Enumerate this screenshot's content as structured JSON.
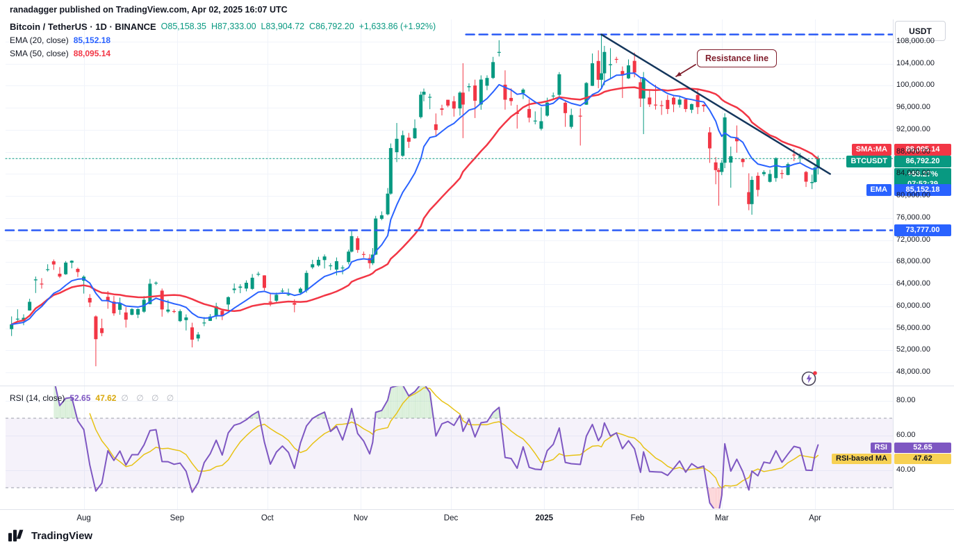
{
  "attribution": "ranadagger published on TradingView.com, Apr 02, 2025 16:07 UTC",
  "axis_button": "USDT",
  "legend": {
    "symbol": "Bitcoin / TetherUS · 1D · BINANCE",
    "ohlc": "O85,158.35  H87,333.00  L83,904.72  C86,792.20  +1,633.86 (+1.92%)",
    "ema_label": "EMA (20, close)",
    "ema_value": "85,152.18",
    "sma_label": "SMA (50, close)",
    "sma_value": "88,095.14"
  },
  "rsi_legend": {
    "label": "RSI (14, close)",
    "value": "52.65",
    "ma_value": "47.62",
    "hidden": "∅ ∅ ∅ ∅"
  },
  "price_labels": {
    "sma_tag": "SMA:MA",
    "sma_value": "88,095.14",
    "symbol_tag": "BTCUSDT",
    "symbol_value": "86,792.20",
    "countdown_pct": "+53.27%",
    "countdown_time": "07:52:39",
    "ema_tag": "EMA",
    "ema_value": "85,152.18",
    "support_value": "73,777.00"
  },
  "rsi_labels": {
    "rsi_tag": "RSI",
    "rsi_value": "52.65",
    "ma_tag": "RSI-based MA",
    "ma_value": "47.62"
  },
  "annotation": {
    "resistance": "Resistance line"
  },
  "footer": {
    "brand": "TradingView"
  },
  "colors": {
    "up": "#089981",
    "down": "#f23645",
    "ema": "#2962ff",
    "sma": "#f23645",
    "dashed": "#2a5af5",
    "trend": "#14365c",
    "annotation": "#7f1d2b",
    "rsi": "#7e57c2",
    "rsi_ma": "#e7c214",
    "grid": "#f0f3fa",
    "separator": "#e0e3eb",
    "axis_text": "#131722"
  },
  "chart_data": {
    "type": "candlestick",
    "title": "Bitcoin / TetherUS · 1D · BINANCE",
    "symbol": "BTCUSDT",
    "exchange": "BINANCE",
    "interval": "1D",
    "ohlc_current": {
      "open": 85158.35,
      "high": 87333.0,
      "low": 83904.72,
      "close": 86792.2,
      "change": 1633.86,
      "change_pct": 1.92
    },
    "indicators": {
      "ema_20": 85152.18,
      "sma_50": 88095.14,
      "rsi_14": 52.65,
      "rsi_based_ma": 47.62
    },
    "levels": {
      "resistance_dashed": 109300,
      "resistance_dashed_start": "2024-12-06",
      "support_dashed": 73777,
      "current_price": 86792.2
    },
    "trendline": {
      "label": "Resistance line",
      "start": {
        "date": "2025-01-20",
        "price": 109300
      },
      "end": {
        "date": "2025-04-06",
        "price": 84000
      }
    },
    "y_axis": {
      "min": 46740,
      "max": 112000,
      "ticks": [
        108000,
        104000,
        100000,
        96000,
        92000,
        88000,
        84000,
        80000,
        76000,
        72000,
        68000,
        64000,
        60000,
        56000,
        52000,
        48000
      ]
    },
    "x_axis": [
      {
        "label": "Aug",
        "date": "2024-08-01"
      },
      {
        "label": "Sep",
        "date": "2024-09-01"
      },
      {
        "label": "Oct",
        "date": "2024-10-01"
      },
      {
        "label": "Nov",
        "date": "2024-11-01"
      },
      {
        "label": "Dec",
        "date": "2024-12-01"
      },
      {
        "label": "2025",
        "date": "2025-01-01",
        "major": true
      },
      {
        "label": "Feb",
        "date": "2025-02-01"
      },
      {
        "label": "Mar",
        "date": "2025-03-01"
      },
      {
        "label": "Apr",
        "date": "2025-04-01"
      }
    ],
    "rsi_axis": {
      "ticks": [
        80,
        60,
        40
      ],
      "upper_band": 70,
      "lower_band": 30
    },
    "candles": [
      [
        "2024-07-08",
        55850,
        58150,
        54600,
        56700
      ],
      [
        "2024-07-10",
        57700,
        59450,
        57100,
        57740
      ],
      [
        "2024-07-12",
        57340,
        58530,
        56550,
        57900
      ],
      [
        "2024-07-14",
        59230,
        61360,
        59200,
        60800
      ],
      [
        "2024-07-16",
        64700,
        65390,
        62400,
        64870
      ],
      [
        "2024-07-18",
        64100,
        65100,
        63200,
        63970
      ],
      [
        "2024-07-20",
        66700,
        67620,
        66300,
        66710
      ],
      [
        "2024-07-22",
        68150,
        68480,
        66600,
        67580
      ],
      [
        "2024-07-24",
        65900,
        67100,
        65100,
        65380
      ],
      [
        "2024-07-26",
        65800,
        68200,
        65700,
        67910
      ],
      [
        "2024-07-28",
        67900,
        68340,
        66880,
        68250
      ],
      [
        "2024-07-30",
        66780,
        67000,
        65300,
        66200
      ],
      [
        "2024-08-01",
        64620,
        65600,
        62300,
        65360
      ],
      [
        "2024-08-03",
        61500,
        62200,
        59850,
        60680
      ],
      [
        "2024-08-05",
        58150,
        58350,
        49110,
        54020
      ],
      [
        "2024-08-07",
        56020,
        57740,
        54560,
        55130
      ],
      [
        "2024-08-09",
        61710,
        62750,
        59540,
        60880
      ],
      [
        "2024-08-11",
        60860,
        61860,
        58270,
        58710
      ],
      [
        "2024-08-13",
        59350,
        61560,
        58450,
        60600
      ],
      [
        "2024-08-15",
        58870,
        59850,
        56130,
        57560
      ],
      [
        "2024-08-17",
        58450,
        59650,
        58350,
        59490
      ],
      [
        "2024-08-19",
        58470,
        59620,
        57850,
        59490
      ],
      [
        "2024-08-21",
        59010,
        61830,
        58790,
        61170
      ],
      [
        "2024-08-23",
        60380,
        64950,
        60340,
        64090
      ],
      [
        "2024-08-25",
        64180,
        64500,
        63830,
        64270
      ],
      [
        "2024-08-27",
        62830,
        63210,
        58110,
        59420
      ],
      [
        "2024-08-29",
        59030,
        61160,
        58760,
        59390
      ],
      [
        "2024-08-31",
        59110,
        59430,
        58750,
        58970
      ],
      [
        "2024-09-02",
        57300,
        59430,
        57130,
        59110
      ],
      [
        "2024-09-04",
        57480,
        58520,
        55610,
        57970
      ],
      [
        "2024-09-06",
        56160,
        57010,
        52530,
        53940
      ],
      [
        "2024-09-08",
        54150,
        55320,
        53630,
        54870
      ],
      [
        "2024-09-10",
        57040,
        58040,
        56380,
        57040
      ],
      [
        "2024-09-12",
        57340,
        58580,
        57320,
        58130
      ],
      [
        "2024-09-14",
        58130,
        60630,
        57650,
        60000
      ],
      [
        "2024-09-16",
        59180,
        59210,
        57490,
        58190
      ],
      [
        "2024-09-18",
        60310,
        61780,
        59180,
        61650
      ],
      [
        "2024-09-20",
        62940,
        64130,
        62350,
        63200
      ],
      [
        "2024-09-22",
        63350,
        64000,
        62370,
        63570
      ],
      [
        "2024-09-24",
        63210,
        64700,
        62700,
        64260
      ],
      [
        "2024-09-26",
        63150,
        65840,
        62970,
        65170
      ],
      [
        "2024-09-28",
        65790,
        66260,
        65440,
        65880
      ],
      [
        "2024-09-30",
        65600,
        65620,
        62860,
        63330
      ],
      [
        "2024-10-02",
        60840,
        62380,
        60000,
        60650
      ],
      [
        "2024-10-04",
        61000,
        62480,
        60750,
        62070
      ],
      [
        "2024-10-06",
        62810,
        63240,
        62500,
        62820
      ],
      [
        "2024-10-08",
        62130,
        63200,
        61860,
        62160
      ],
      [
        "2024-10-10",
        60580,
        61250,
        58900,
        60280
      ],
      [
        "2024-10-12",
        62450,
        63440,
        62050,
        63190
      ],
      [
        "2024-10-14",
        62850,
        66480,
        62450,
        66050
      ],
      [
        "2024-10-16",
        67050,
        68420,
        66750,
        67620
      ],
      [
        "2024-10-18",
        67400,
        68970,
        67180,
        68420
      ],
      [
        "2024-10-20",
        68380,
        69400,
        66850,
        69030
      ],
      [
        "2024-10-22",
        67370,
        67800,
        66550,
        67410
      ],
      [
        "2024-10-24",
        66650,
        68850,
        65600,
        68180
      ],
      [
        "2024-10-26",
        66930,
        67420,
        65790,
        67020
      ],
      [
        "2024-10-28",
        68010,
        70280,
        67590,
        69910
      ],
      [
        "2024-10-29",
        69910,
        73620,
        69750,
        72720
      ],
      [
        "2024-10-31",
        72340,
        72700,
        69690,
        70220
      ],
      [
        "2024-11-02",
        69470,
        69920,
        68820,
        69360
      ],
      [
        "2024-11-04",
        68740,
        69450,
        66830,
        67810
      ],
      [
        "2024-11-05",
        67810,
        70550,
        67480,
        69370
      ],
      [
        "2024-11-06",
        69370,
        76400,
        69280,
        75920
      ],
      [
        "2024-11-08",
        75860,
        77200,
        75600,
        76510
      ],
      [
        "2024-11-10",
        76680,
        81450,
        76490,
        80430
      ],
      [
        "2024-11-11",
        80430,
        89530,
        80220,
        88700
      ],
      [
        "2024-11-13",
        87950,
        93250,
        86150,
        90380
      ],
      [
        "2024-11-15",
        87290,
        91850,
        87110,
        91030
      ],
      [
        "2024-11-17",
        90580,
        91440,
        88720,
        89840
      ],
      [
        "2024-11-19",
        90470,
        93900,
        90370,
        92310
      ],
      [
        "2024-11-21",
        94310,
        98950,
        94060,
        98380
      ],
      [
        "2024-11-22",
        98380,
        99500,
        97190,
        98920
      ],
      [
        "2024-11-24",
        97960,
        98560,
        95750,
        97990
      ],
      [
        "2024-11-26",
        93010,
        94980,
        90790,
        91970
      ],
      [
        "2024-11-28",
        95890,
        96560,
        94620,
        95650
      ],
      [
        "2024-11-30",
        97460,
        97460,
        96110,
        96410
      ],
      [
        "2024-12-02",
        97190,
        98130,
        94400,
        95860
      ],
      [
        "2024-12-04",
        95890,
        99000,
        94580,
        98760
      ],
      [
        "2024-12-05",
        98760,
        104090,
        90500,
        96590
      ],
      [
        "2024-12-07",
        99740,
        100440,
        98970,
        99920
      ],
      [
        "2024-12-09",
        100050,
        101110,
        94150,
        97280
      ],
      [
        "2024-12-11",
        96600,
        101890,
        95650,
        101130
      ],
      [
        "2024-12-13",
        100010,
        101900,
        99200,
        101420
      ],
      [
        "2024-12-15",
        101420,
        105250,
        101230,
        104300
      ],
      [
        "2024-12-17",
        106060,
        108270,
        105320,
        106140
      ],
      [
        "2024-12-19",
        100200,
        102800,
        95670,
        97470
      ],
      [
        "2024-12-21",
        97800,
        99540,
        96400,
        97220
      ],
      [
        "2024-12-23",
        95180,
        96540,
        92230,
        94890
      ],
      [
        "2024-12-25",
        98690,
        99550,
        97590,
        99300
      ],
      [
        "2024-12-27",
        95790,
        97550,
        93350,
        94210
      ],
      [
        "2024-12-29",
        93550,
        95350,
        93000,
        93680
      ],
      [
        "2024-12-31",
        92200,
        96100,
        91900,
        93570
      ],
      [
        "2025-01-02",
        94580,
        97840,
        94390,
        96940
      ],
      [
        "2025-01-04",
        98170,
        98770,
        97530,
        98220
      ],
      [
        "2025-01-06",
        98350,
        102480,
        97920,
        102080
      ],
      [
        "2025-01-08",
        96920,
        97250,
        92550,
        95040
      ],
      [
        "2025-01-10",
        92550,
        95840,
        92210,
        94700
      ],
      [
        "2025-01-13",
        94570,
        95900,
        89160,
        94540
      ],
      [
        "2025-01-15",
        96570,
        100680,
        96530,
        100500
      ],
      [
        "2025-01-17",
        99990,
        105860,
        99950,
        104080
      ],
      [
        "2025-01-19",
        104500,
        106430,
        99550,
        101090
      ],
      [
        "2025-01-20",
        101090,
        109360,
        99540,
        102260
      ],
      [
        "2025-01-21",
        102260,
        107240,
        100100,
        106140
      ],
      [
        "2025-01-23",
        103740,
        106820,
        101260,
        103910
      ],
      [
        "2025-01-25",
        104870,
        105260,
        104110,
        104720
      ],
      [
        "2025-01-27",
        102680,
        103500,
        97780,
        102080
      ],
      [
        "2025-01-29",
        101340,
        104780,
        101240,
        103700
      ],
      [
        "2025-01-31",
        104520,
        106020,
        101540,
        102400
      ],
      [
        "2025-02-02",
        100640,
        101440,
        96150,
        97690
      ],
      [
        "2025-02-03",
        97690,
        102500,
        91230,
        101440
      ],
      [
        "2025-02-05",
        97870,
        99150,
        96150,
        96620
      ],
      [
        "2025-02-07",
        96580,
        100180,
        95680,
        96530
      ],
      [
        "2025-02-09",
        96480,
        97320,
        94710,
        96470
      ],
      [
        "2025-02-11",
        97430,
        98320,
        94880,
        95780
      ],
      [
        "2025-02-13",
        97840,
        98090,
        95220,
        96610
      ],
      [
        "2025-02-15",
        96570,
        97990,
        96050,
        97500
      ],
      [
        "2025-02-17",
        97550,
        97700,
        95230,
        95780
      ],
      [
        "2025-02-19",
        95650,
        96760,
        95040,
        96680
      ],
      [
        "2025-02-21",
        98330,
        99480,
        94870,
        96120
      ],
      [
        "2025-02-23",
        96550,
        96670,
        95260,
        96280
      ],
      [
        "2025-02-25",
        91550,
        92490,
        86010,
        88640
      ],
      [
        "2025-02-27",
        86100,
        87070,
        82130,
        84700
      ],
      [
        "2025-02-28",
        84700,
        85070,
        78240,
        84370
      ],
      [
        "2025-03-01",
        84370,
        86530,
        83790,
        86030
      ],
      [
        "2025-03-02",
        86030,
        95000,
        85050,
        94260
      ],
      [
        "2025-03-04",
        86060,
        88960,
        81500,
        87220
      ],
      [
        "2025-03-06",
        90620,
        92800,
        87860,
        89930
      ],
      [
        "2025-03-08",
        86740,
        86840,
        85250,
        86150
      ],
      [
        "2025-03-10",
        80700,
        84120,
        77420,
        78530
      ],
      [
        "2025-03-11",
        78530,
        83570,
        76600,
        82920
      ],
      [
        "2025-03-13",
        83670,
        84280,
        79930,
        81110
      ],
      [
        "2025-03-15",
        83970,
        84670,
        83610,
        84340
      ],
      [
        "2025-03-17",
        82570,
        84760,
        82440,
        84010
      ],
      [
        "2025-03-19",
        83250,
        87030,
        82590,
        86860
      ],
      [
        "2025-03-21",
        84160,
        84770,
        83150,
        84050
      ],
      [
        "2025-03-23",
        83820,
        86090,
        83750,
        85790
      ],
      [
        "2025-03-25",
        87510,
        88540,
        86330,
        87470
      ],
      [
        "2025-03-27",
        86960,
        87790,
        85860,
        87190
      ],
      [
        "2025-03-29",
        84360,
        84560,
        81640,
        82600
      ],
      [
        "2025-03-31",
        82350,
        83870,
        81260,
        82540
      ],
      [
        "2025-04-01",
        82540,
        85550,
        82400,
        85170
      ],
      [
        "2025-04-02",
        85158,
        87333,
        83904,
        86792
      ]
    ]
  }
}
